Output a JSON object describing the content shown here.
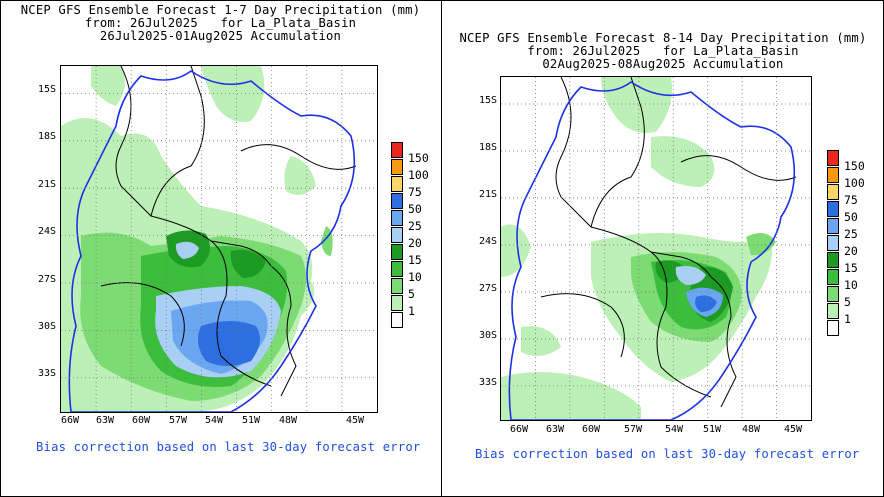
{
  "left_panel": {
    "title_lines": [
      "NCEP GFS Ensemble Forecast 1-7 Day Precipitation (mm)",
      "from: 26Jul2025   for La_Plata_Basin",
      "26Jul2025-01Aug2025 Accumulation"
    ],
    "lat_labels": [
      "15S",
      "18S",
      "21S",
      "24S",
      "27S",
      "30S",
      "33S"
    ],
    "lon_labels": [
      "66W",
      "63W",
      "60W",
      "57W",
      "54W",
      "51W",
      "48W",
      "45W"
    ],
    "note": "Bias correction based on last 30-day forecast error"
  },
  "right_panel": {
    "title_lines": [
      "NCEP GFS Ensemble Forecast 8-14 Day Precipitation (mm)",
      "from: 26Jul2025   for La_Plata_Basin",
      "02Aug2025-08Aug2025 Accumulation"
    ],
    "lat_labels": [
      "15S",
      "18S",
      "21S",
      "24S",
      "27S",
      "30S",
      "33S"
    ],
    "lon_labels": [
      "66W",
      "63W",
      "60W",
      "57W",
      "54W",
      "51W",
      "48W",
      "45W"
    ],
    "note": "Bias correction based on last 30-day forecast error"
  },
  "legend": {
    "levels": [
      "150",
      "100",
      "75",
      "50",
      "25",
      "20",
      "15",
      "10",
      "5",
      "1"
    ],
    "colors": [
      "#e8281a",
      "#f59a12",
      "#f8d66a",
      "#2d6fe0",
      "#6aa7f0",
      "#a9cff5",
      "#1c9a22",
      "#3cbd3c",
      "#7ddb74",
      "#bdf0b6",
      "#ffffff"
    ]
  },
  "colors": {
    "basin_outline": "#1d32e8",
    "border": "#000000",
    "note_text": "#1f4fe0"
  }
}
